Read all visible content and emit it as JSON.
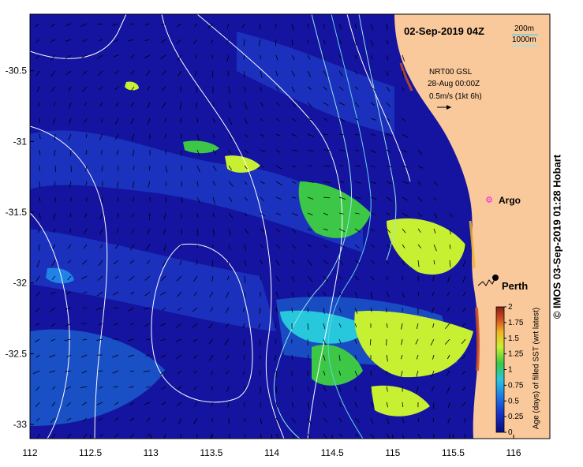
{
  "title": "02-Sep-2019 04Z",
  "isobaths": {
    "line1": "200m",
    "line2": "1000m"
  },
  "altimetry": {
    "line1": "NRT00 GSL",
    "line2": "28-Aug 00:00Z",
    "line3": "0.5m/s (1kt 6h)"
  },
  "places": {
    "argo": "Argo",
    "perth": "Perth"
  },
  "credit": "© IMOS 03-Sep-2019 01:28 Hobart",
  "colorbar": {
    "title": "Age (days) of filled SST (wrt latest)",
    "ticks": [
      "0",
      "0.25",
      "0.5",
      "0.75",
      "1",
      "1.25",
      "1.5",
      "1.75",
      "2"
    ]
  },
  "axes": {
    "x_ticks": [
      "112",
      "112.5",
      "113",
      "113.5",
      "114",
      "114.5",
      "115",
      "115.5",
      "116"
    ],
    "y_ticks": [
      "-30.5",
      "-31",
      "-31.5",
      "-32",
      "-32.5",
      "-33"
    ]
  },
  "colors": {
    "land": "#f9c99b",
    "ocean_base": "#1414a0",
    "ocean_mid": "#1e3cc8",
    "age_medium": "#1e82e6",
    "age_high": "#28c8dc",
    "age_green": "#3cc846",
    "age_yellow": "#c8f032",
    "isobath_200": "#64d2e6",
    "isobath_1000": "#96e6e6",
    "argo": "#ff3cd2"
  },
  "chart_data": {
    "type": "heatmap",
    "title": "02-Sep-2019 04Z",
    "xlim": [
      112,
      116.3
    ],
    "ylim": [
      -33.1,
      -30.1
    ],
    "x_ticks": [
      112,
      112.5,
      113,
      113.5,
      114,
      114.5,
      115,
      115.5,
      116
    ],
    "y_ticks": [
      -30.5,
      -31,
      -31.5,
      -32,
      -32.5,
      -33
    ],
    "colorbar": {
      "label": "Age (days) of filled SST (wrt latest)",
      "range": [
        0,
        2
      ]
    },
    "markers": [
      {
        "name": "Argo",
        "lon": 115.75,
        "lat": -31.45
      },
      {
        "name": "Perth",
        "lon": 115.86,
        "lat": -31.95
      }
    ]
  }
}
